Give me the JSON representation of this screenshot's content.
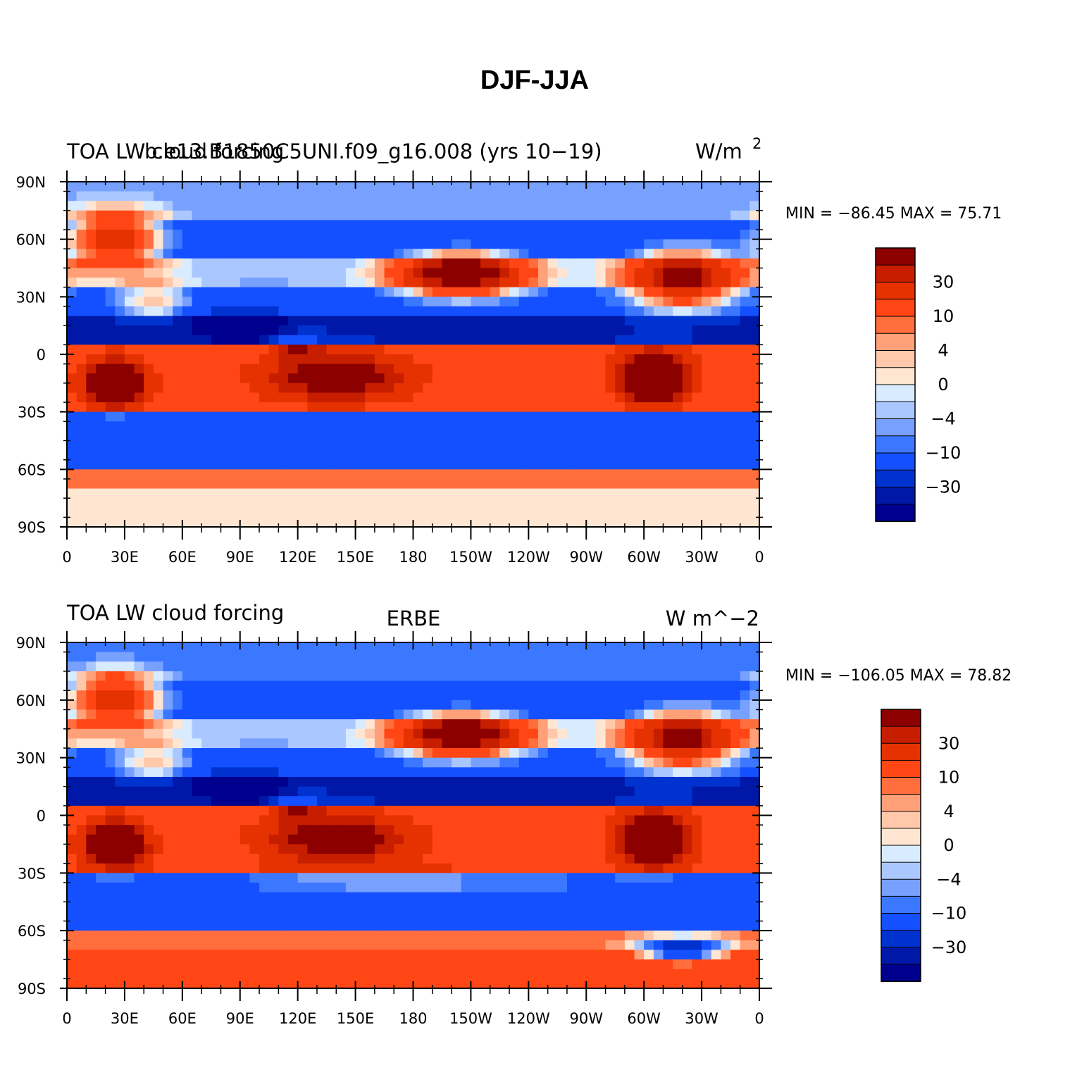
{
  "chart_data": {
    "type": "heatmap",
    "title": "DJF-JJA",
    "colorscale": {
      "colors": [
        "#00008f",
        "#0018a8",
        "#0032d0",
        "#1450ff",
        "#3c78ff",
        "#78a0ff",
        "#aac8ff",
        "#d8ebff",
        "#ffe6d2",
        "#ffc8aa",
        "#ffa078",
        "#ff6e3c",
        "#ff4614",
        "#e63200",
        "#c81e00",
        "#8c0000"
      ],
      "tick_labels": [
        "30",
        "10",
        "4",
        "0",
        "−4",
        "−10",
        "−30"
      ],
      "tick_values": [
        30,
        10,
        4,
        0,
        -4,
        -10,
        -30
      ]
    },
    "panels": [
      {
        "id": "model",
        "title_left": "TOA LW cloud forcing",
        "title_overlay": "b.e13.B1850C5UNI.f09_g16.008 (yrs 10−19)",
        "units_base": "W/m",
        "units_sup": "2",
        "stats": "MIN = −86.45  MAX =  75.71",
        "min": -86.45,
        "max": 75.71,
        "xlabel_ticks": [
          "0",
          "30E",
          "60E",
          "90E",
          "120E",
          "150E",
          "180",
          "150W",
          "120W",
          "90W",
          "60W",
          "30W",
          "0"
        ],
        "ylabel_ticks": [
          "90N",
          "60N",
          "30N",
          "0",
          "30S",
          "60S",
          "90S"
        ],
        "xlim": [
          0,
          360
        ],
        "ylim": [
          -90,
          90
        ]
      },
      {
        "id": "obs",
        "title_left": "TOA LW cloud forcing",
        "title_center": "ERBE",
        "title_right": "W m^−2",
        "stats": "MIN = −106.05  MAX =   78.82",
        "min": -106.05,
        "max": 78.82,
        "xlabel_ticks": [
          "0",
          "30E",
          "60E",
          "90E",
          "120E",
          "150E",
          "180",
          "150W",
          "120W",
          "90W",
          "60W",
          "30W",
          "0"
        ],
        "ylabel_ticks": [
          "90N",
          "60N",
          "30N",
          "0",
          "30S",
          "60S",
          "90S"
        ],
        "xlim": [
          0,
          360
        ],
        "ylim": [
          -90,
          90
        ]
      }
    ]
  }
}
